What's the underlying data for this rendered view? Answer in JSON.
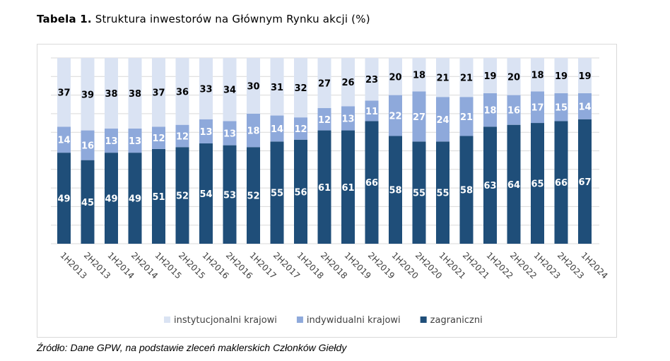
{
  "title": {
    "prefix": "Tabela 1.",
    "text": " Struktura inwestorów na Głównym Rynku akcji (%)"
  },
  "source": "Źródło: Dane GPW, na podstawie zleceń maklerskich Członków Giełdy",
  "chart_data": {
    "type": "bar",
    "stacked": true,
    "categories": [
      "1H2013",
      "2H2013",
      "1H2014",
      "2H2014",
      "1H2015",
      "2H2015",
      "1H2016",
      "2H2016",
      "1H2017",
      "2H2017",
      "1H2018",
      "2H2018",
      "1H2019",
      "2H2019",
      "1H2020",
      "2H2020",
      "1H2021",
      "2H2021",
      "1H2022",
      "2H2022",
      "1H2023",
      "2H2023",
      "1H2024"
    ],
    "series": [
      {
        "name": "zagraniczni",
        "color": "#1F4E79",
        "values": [
          49,
          45,
          49,
          49,
          51,
          52,
          54,
          53,
          52,
          55,
          56,
          61,
          61,
          66,
          58,
          55,
          55,
          58,
          63,
          64,
          65,
          66,
          67
        ]
      },
      {
        "name": "indywidualni krajowi",
        "color": "#8EA9DB",
        "values": [
          14,
          16,
          13,
          13,
          12,
          12,
          13,
          13,
          18,
          14,
          12,
          12,
          13,
          11,
          22,
          27,
          24,
          21,
          18,
          16,
          17,
          15,
          14
        ]
      },
      {
        "name": "instytucjonalni krajowi",
        "color": "#DAE3F3",
        "values": [
          37,
          39,
          38,
          38,
          37,
          36,
          33,
          34,
          30,
          31,
          32,
          27,
          26,
          23,
          20,
          18,
          21,
          21,
          19,
          20,
          18,
          19,
          19
        ]
      }
    ],
    "legend_order": [
      "instytucjonalni krajowi",
      "indywidualni krajowi",
      "zagraniczni"
    ],
    "legend_position": "bottom",
    "ylim": [
      0,
      100
    ],
    "grid": true,
    "xlabel": "",
    "ylabel": ""
  }
}
